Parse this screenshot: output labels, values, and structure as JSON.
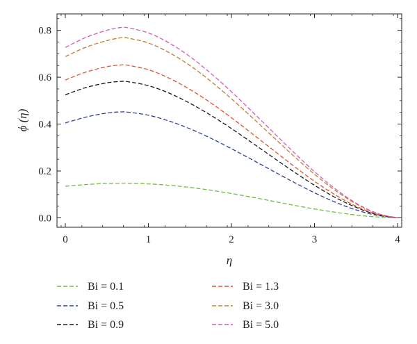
{
  "chart_data": {
    "type": "line",
    "title": "",
    "xlabel": "η",
    "ylabel": "ϕ (η)",
    "xlim": [
      -0.1,
      4.05
    ],
    "ylim": [
      -0.04,
      0.87
    ],
    "xticks": [
      0,
      1,
      2,
      3,
      4
    ],
    "xtick_labels": [
      "0",
      "1",
      "2",
      "3",
      "4"
    ],
    "yticks": [
      0.0,
      0.2,
      0.4,
      0.6,
      0.8
    ],
    "ytick_labels": [
      "0.0",
      "0.2",
      "0.4",
      "0.6",
      "0.8"
    ],
    "grid": false,
    "legend_position": "bottom",
    "line_style": "dashed",
    "x": [
      0,
      0.25,
      0.5,
      0.67,
      0.75,
      1.0,
      1.25,
      1.5,
      1.75,
      2.0,
      2.25,
      2.5,
      2.75,
      3.0,
      3.25,
      3.5,
      3.75,
      4.0
    ],
    "series": [
      {
        "name": "Bi = 0.1",
        "color": "#6cbf3f",
        "values": [
          0.135,
          0.142,
          0.147,
          0.148,
          0.148,
          0.145,
          0.139,
          0.13,
          0.118,
          0.104,
          0.088,
          0.071,
          0.054,
          0.038,
          0.024,
          0.012,
          0.004,
          0.0
        ]
      },
      {
        "name": "Bi = 0.5",
        "color": "#2e3f9e",
        "values": [
          0.405,
          0.43,
          0.447,
          0.452,
          0.451,
          0.438,
          0.413,
          0.38,
          0.34,
          0.295,
          0.248,
          0.2,
          0.152,
          0.107,
          0.067,
          0.034,
          0.011,
          0.0
        ]
      },
      {
        "name": "Bi = 0.9",
        "color": "#1a1a1a",
        "values": [
          0.525,
          0.556,
          0.576,
          0.582,
          0.581,
          0.564,
          0.532,
          0.489,
          0.438,
          0.381,
          0.32,
          0.258,
          0.197,
          0.139,
          0.087,
          0.045,
          0.014,
          0.0
        ]
      },
      {
        "name": "Bi = 1.3",
        "color": "#e0542a",
        "values": [
          0.588,
          0.622,
          0.645,
          0.652,
          0.651,
          0.632,
          0.596,
          0.548,
          0.491,
          0.427,
          0.359,
          0.29,
          0.221,
          0.156,
          0.098,
          0.05,
          0.016,
          0.0
        ]
      },
      {
        "name": "Bi = 3.0",
        "color": "#c47a33",
        "values": [
          0.688,
          0.728,
          0.756,
          0.768,
          0.767,
          0.746,
          0.705,
          0.65,
          0.583,
          0.508,
          0.428,
          0.346,
          0.264,
          0.186,
          0.117,
          0.06,
          0.019,
          0.0
        ]
      },
      {
        "name": "Bi = 5.0",
        "color": "#d65ab8",
        "values": [
          0.727,
          0.77,
          0.8,
          0.812,
          0.811,
          0.789,
          0.746,
          0.688,
          0.617,
          0.538,
          0.453,
          0.366,
          0.28,
          0.197,
          0.124,
          0.063,
          0.02,
          0.0
        ]
      }
    ]
  }
}
